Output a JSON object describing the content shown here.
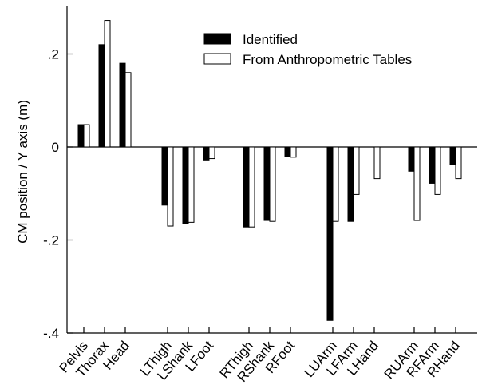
{
  "chart_data": {
    "type": "bar",
    "ylabel": "CM position / Y axis (m)",
    "ylim": [
      -0.4,
      0.3
    ],
    "yticks": [
      {
        "value": 0.2,
        "label": ".2"
      },
      {
        "value": 0,
        "label": "0"
      },
      {
        "value": -0.2,
        "label": "-.2"
      },
      {
        "value": -0.4,
        "label": "-.4"
      }
    ],
    "legend_position": "top-right",
    "categories": [
      {
        "label": "Pelvis",
        "group": 0
      },
      {
        "label": "Thorax",
        "group": 0
      },
      {
        "label": "Head",
        "group": 0
      },
      {
        "label": "LThigh",
        "group": 1
      },
      {
        "label": "LShank",
        "group": 1
      },
      {
        "label": "LFoot",
        "group": 1
      },
      {
        "label": "RThigh",
        "group": 2
      },
      {
        "label": "RShank",
        "group": 2
      },
      {
        "label": "RFoot",
        "group": 2
      },
      {
        "label": "LUArm",
        "group": 3
      },
      {
        "label": "LFArm",
        "group": 3
      },
      {
        "label": "LHand",
        "group": 3
      },
      {
        "label": "RUArm",
        "group": 4
      },
      {
        "label": "RFArm",
        "group": 4
      },
      {
        "label": "RHand",
        "group": 4
      }
    ],
    "series": [
      {
        "name": "Identified",
        "color": "#000000",
        "values": [
          0.048,
          0.22,
          0.18,
          -0.125,
          -0.165,
          -0.028,
          -0.172,
          -0.158,
          -0.02,
          -0.373,
          -0.16,
          0.0,
          -0.052,
          -0.078,
          -0.038
        ]
      },
      {
        "name": "From Anthropometric Tables",
        "color": "#ffffff",
        "values": [
          0.048,
          0.272,
          0.16,
          -0.17,
          -0.162,
          -0.025,
          -0.172,
          -0.16,
          -0.022,
          -0.16,
          -0.102,
          -0.068,
          -0.158,
          -0.102,
          -0.068
        ]
      }
    ]
  }
}
